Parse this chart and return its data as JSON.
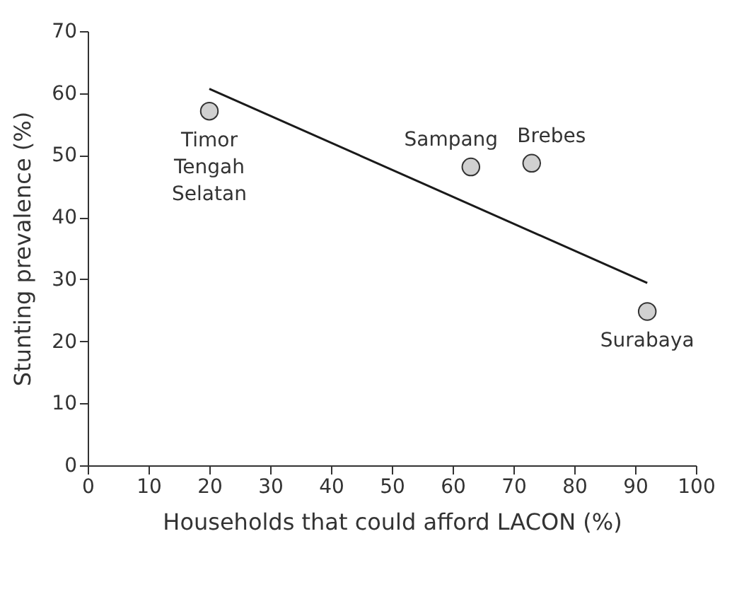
{
  "chart_data": {
    "type": "scatter",
    "xlabel": "Households that could afford LACON (%)",
    "ylabel": "Stunting prevalence (%)",
    "xlim": [
      0,
      100
    ],
    "xticks": [
      0,
      10,
      20,
      30,
      40,
      50,
      60,
      70,
      80,
      90,
      100
    ],
    "ylim": [
      0,
      70
    ],
    "yticks": [
      0,
      10,
      20,
      30,
      40,
      50,
      60,
      70
    ],
    "grid": false,
    "series": [
      {
        "type": "scatter",
        "color": "#d0d0d0",
        "marker": "circle",
        "x": [
          20,
          63,
          73,
          92
        ],
        "values": [
          57.1,
          48.1,
          48.7,
          24.8
        ]
      },
      {
        "type": "line",
        "color": "#1a1a1a",
        "line_style": "solid",
        "x": [
          20,
          92
        ],
        "values": [
          60.7,
          29.4
        ]
      }
    ],
    "annotations": [
      {
        "text": "Timor\nTengah\nSelatan",
        "x": 20,
        "y": 57.1
      },
      {
        "text": "Sampang",
        "x": 63,
        "y": 48.1
      },
      {
        "text": "Brebes",
        "x": 73,
        "y": 48.7
      },
      {
        "text": "Surabaya",
        "x": 92,
        "y": 24.8
      }
    ]
  }
}
